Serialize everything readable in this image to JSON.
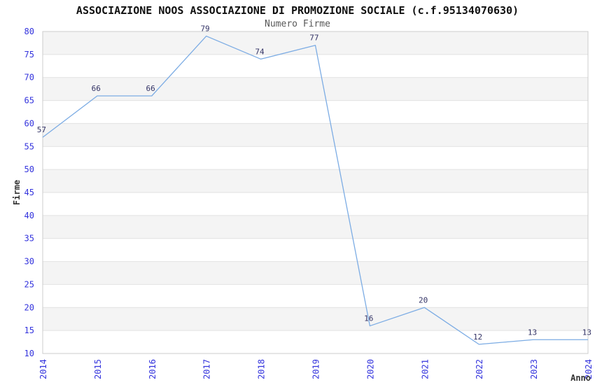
{
  "chart_data": {
    "type": "line",
    "title": "ASSOCIAZIONE NOOS ASSOCIAZIONE DI PROMOZIONE SOCIALE (c.f.95134070630)",
    "subtitle": "Numero Firme",
    "xlabel": "Anno",
    "ylabel": "Firme",
    "categories": [
      "2014",
      "2015",
      "2016",
      "2017",
      "2018",
      "2019",
      "2020",
      "2021",
      "2022",
      "2023",
      "2024"
    ],
    "series": [
      {
        "name": "Numero Firme",
        "values": [
          57,
          66,
          66,
          79,
          74,
          77,
          16,
          20,
          12,
          13,
          13
        ]
      }
    ],
    "ylim": [
      10,
      80
    ],
    "ytick_step": 5,
    "grid": "horizontal-bands-alternating",
    "legend": "none",
    "data_labels_visible": true,
    "colors": {
      "line": "#7cace4",
      "tick_label": "#3333dd",
      "data_label": "#333366",
      "band_gray": "#f4f4f4",
      "band_white": "#ffffff",
      "gridline": "#e2e2e2",
      "plot_border": "#cccccc",
      "axis_title": "#333333",
      "title": "#111111",
      "subtitle": "#585858"
    }
  }
}
